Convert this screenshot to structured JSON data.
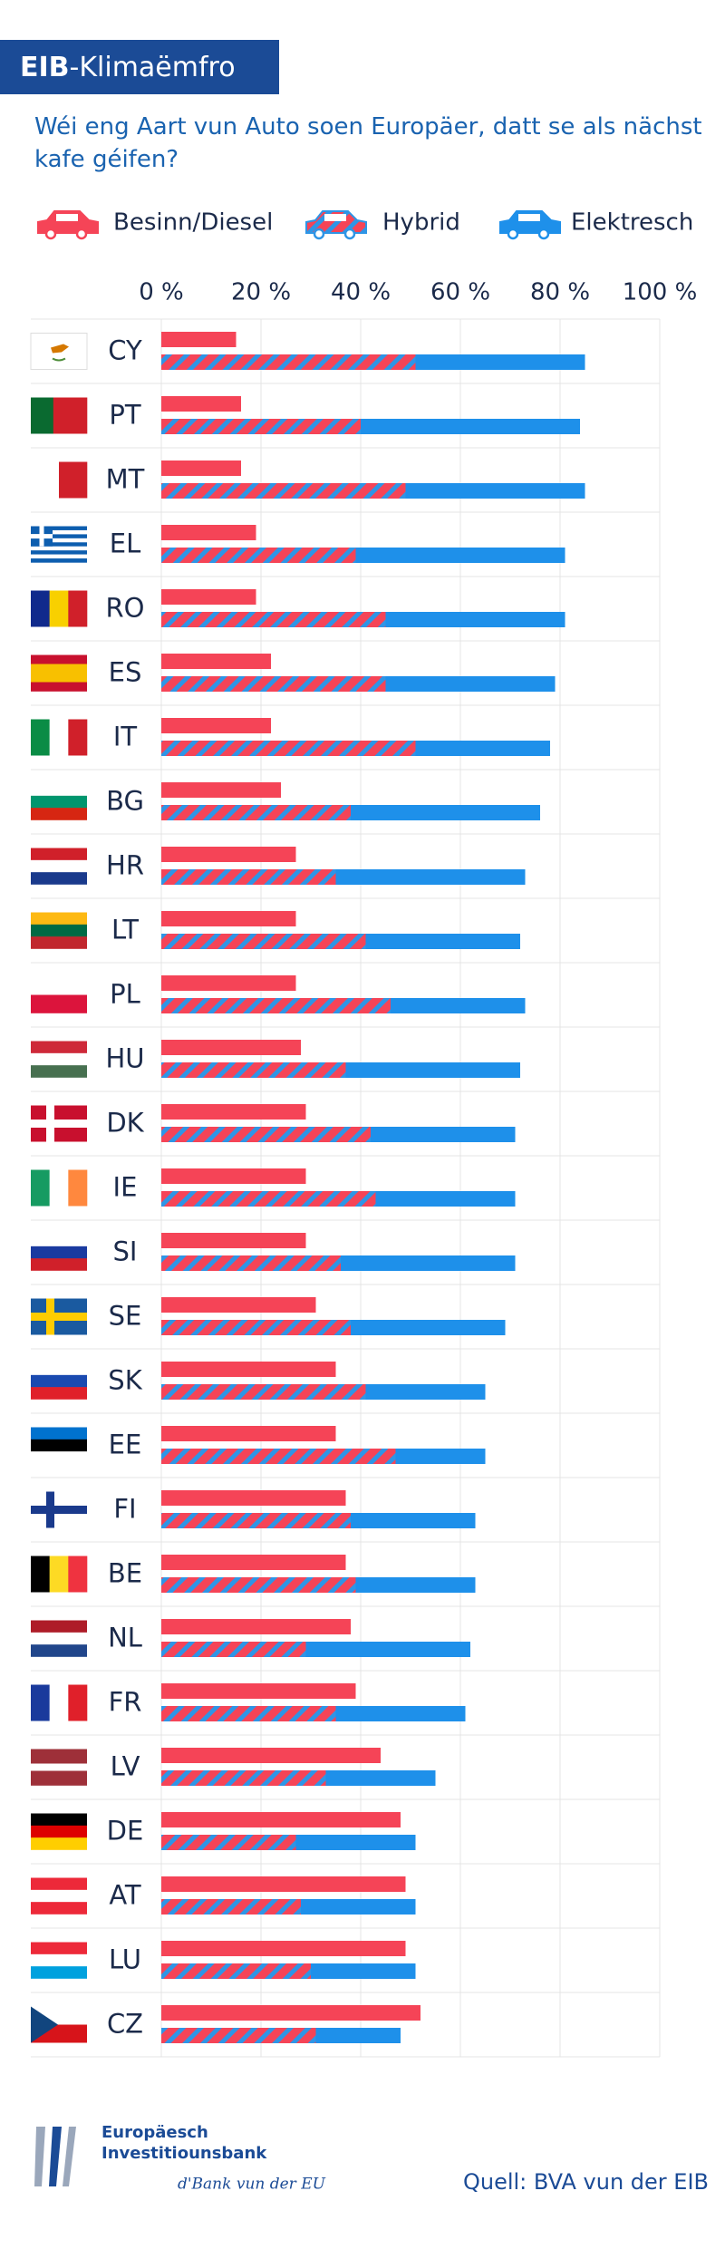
{
  "chart_data": {
    "type": "bar",
    "title_prefix": "EIB",
    "title": "-Klimaëmfro",
    "subtitle": "Wéi eng Aart vun Auto soen Europäer, datt se als nächst kafe géifen?",
    "categories": [
      "CY",
      "PT",
      "MT",
      "EL",
      "RO",
      "ES",
      "IT",
      "BG",
      "HR",
      "LT",
      "PL",
      "HU",
      "DK",
      "IE",
      "SI",
      "SE",
      "SK",
      "EE",
      "FI",
      "BE",
      "NL",
      "FR",
      "LV",
      "DE",
      "AT",
      "LU",
      "CZ"
    ],
    "series": [
      {
        "name": "Besinn/Diesel",
        "color": "#f54457",
        "values": [
          15,
          16,
          16,
          19,
          19,
          22,
          22,
          24,
          27,
          27,
          27,
          28,
          29,
          29,
          29,
          31,
          35,
          35,
          37,
          37,
          38,
          39,
          44,
          48,
          49,
          49,
          52
        ]
      },
      {
        "name": "Hybrid",
        "color": "#f54457",
        "stripe_color": "#2e95e6",
        "values": [
          51,
          40,
          49,
          39,
          45,
          45,
          51,
          38,
          35,
          41,
          46,
          37,
          42,
          43,
          36,
          38,
          41,
          47,
          38,
          39,
          29,
          35,
          33,
          27,
          28,
          30,
          31
        ]
      },
      {
        "name": "Elektresch",
        "color": "#1e90ea",
        "values": [
          34,
          44,
          36,
          42,
          36,
          34,
          27,
          38,
          38,
          31,
          27,
          35,
          29,
          28,
          35,
          31,
          24,
          18,
          25,
          24,
          33,
          26,
          22,
          24,
          23,
          21,
          17
        ]
      }
    ],
    "xlim": [
      0,
      100
    ],
    "xticks": [
      {
        "value": 0,
        "label": "0 %"
      },
      {
        "value": 20,
        "label": "20 %"
      },
      {
        "value": 40,
        "label": "40 %"
      },
      {
        "value": 60,
        "label": "60 %"
      },
      {
        "value": 80,
        "label": "80 %"
      },
      {
        "value": 100,
        "label": "100 %"
      }
    ],
    "grid": true,
    "logo_text": [
      "Europäesch",
      "Investitiounsbank"
    ],
    "tagline": "d'Bank vun der EU",
    "source": "Quell: BVA vun der EIB"
  }
}
